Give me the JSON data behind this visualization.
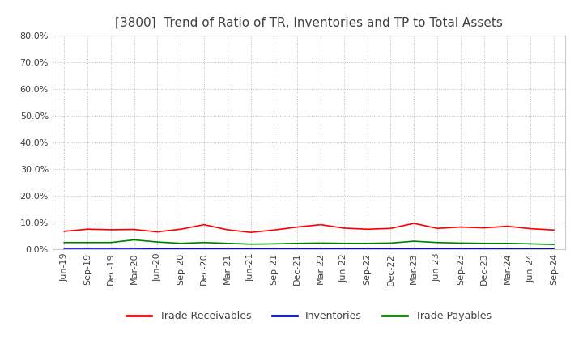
{
  "title": "[3800]  Trend of Ratio of TR, Inventories and TP to Total Assets",
  "x_labels": [
    "Jun-19",
    "Sep-19",
    "Dec-19",
    "Mar-20",
    "Jun-20",
    "Sep-20",
    "Dec-20",
    "Mar-21",
    "Jun-21",
    "Sep-21",
    "Dec-21",
    "Mar-22",
    "Jun-22",
    "Sep-22",
    "Dec-22",
    "Mar-23",
    "Jun-23",
    "Sep-23",
    "Dec-23",
    "Mar-24",
    "Jun-24",
    "Sep-24"
  ],
  "trade_receivables": [
    0.067,
    0.075,
    0.073,
    0.074,
    0.065,
    0.075,
    0.092,
    0.073,
    0.063,
    0.072,
    0.083,
    0.092,
    0.079,
    0.075,
    0.078,
    0.097,
    0.078,
    0.083,
    0.08,
    0.086,
    0.077,
    0.072
  ],
  "inventories": [
    0.003,
    0.003,
    0.003,
    0.003,
    0.002,
    0.002,
    0.002,
    0.002,
    0.002,
    0.002,
    0.002,
    0.002,
    0.002,
    0.002,
    0.002,
    0.002,
    0.002,
    0.002,
    0.002,
    0.001,
    0.001,
    0.001
  ],
  "trade_payables": [
    0.025,
    0.025,
    0.025,
    0.035,
    0.027,
    0.022,
    0.025,
    0.022,
    0.019,
    0.02,
    0.022,
    0.023,
    0.022,
    0.022,
    0.023,
    0.03,
    0.025,
    0.023,
    0.022,
    0.022,
    0.02,
    0.018
  ],
  "tr_color": "#ff0000",
  "inv_color": "#0000cc",
  "tp_color": "#008000",
  "ylim": [
    0.0,
    0.8
  ],
  "yticks": [
    0.0,
    0.1,
    0.2,
    0.3,
    0.4,
    0.5,
    0.6,
    0.7,
    0.8
  ],
  "legend_labels": [
    "Trade Receivables",
    "Inventories",
    "Trade Payables"
  ],
  "bg_color": "#ffffff",
  "plot_bg_color": "#ffffff",
  "grid_color": "#bbbbbb",
  "title_color": "#404040",
  "title_fontsize": 11,
  "tick_fontsize": 8,
  "legend_fontsize": 9,
  "line_width": 1.2
}
